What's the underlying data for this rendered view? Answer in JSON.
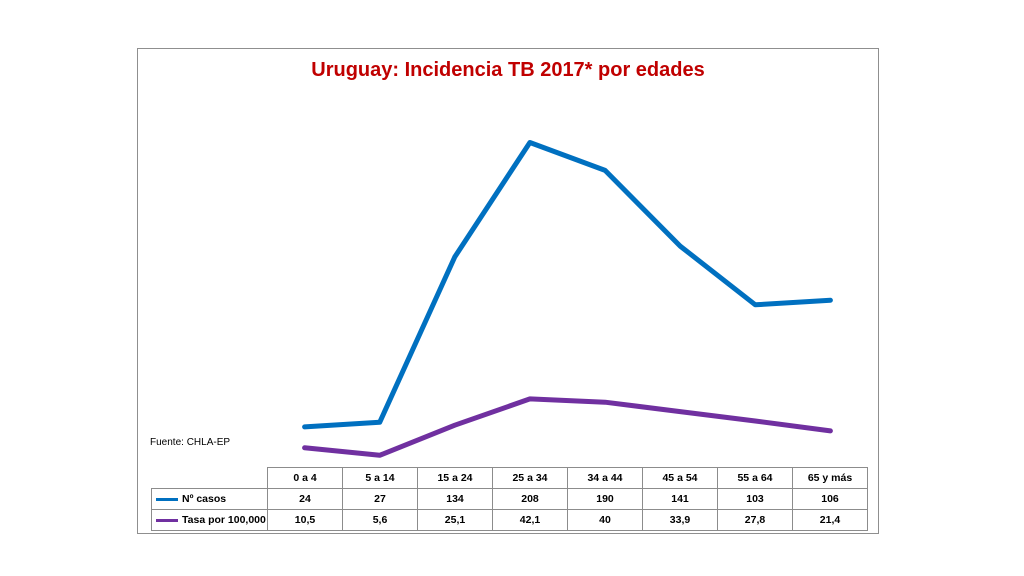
{
  "chart_data": {
    "type": "line",
    "title": "Uruguay: Incidencia TB 2017* por edades",
    "source_note": "Fuente: CHLA-EP",
    "categories": [
      "0 a 4",
      "5 a 14",
      "15 a 24",
      "25 a 34",
      "34 a 44",
      "45 a 54",
      "55 a 64",
      "65 y más"
    ],
    "series": [
      {
        "name": "Nº casos",
        "values": [
          24,
          27,
          134,
          208,
          190,
          141,
          103,
          106
        ],
        "value_labels": [
          "24",
          "27",
          "134",
          "208",
          "190",
          "141",
          "103",
          "106"
        ],
        "color": "#0070c0"
      },
      {
        "name": "Tasa por 100,000",
        "values": [
          10.5,
          5.6,
          25.1,
          42.1,
          40,
          33.9,
          27.8,
          21.4
        ],
        "value_labels": [
          "10,5",
          "5,6",
          "25,1",
          "42,1",
          "40",
          "33,9",
          "27,8",
          "21,4"
        ],
        "color": "#7030a0"
      }
    ],
    "ylim": [
      0,
      220
    ],
    "grid": false,
    "legend": "data-table",
    "xlabel": "",
    "ylabel": ""
  }
}
